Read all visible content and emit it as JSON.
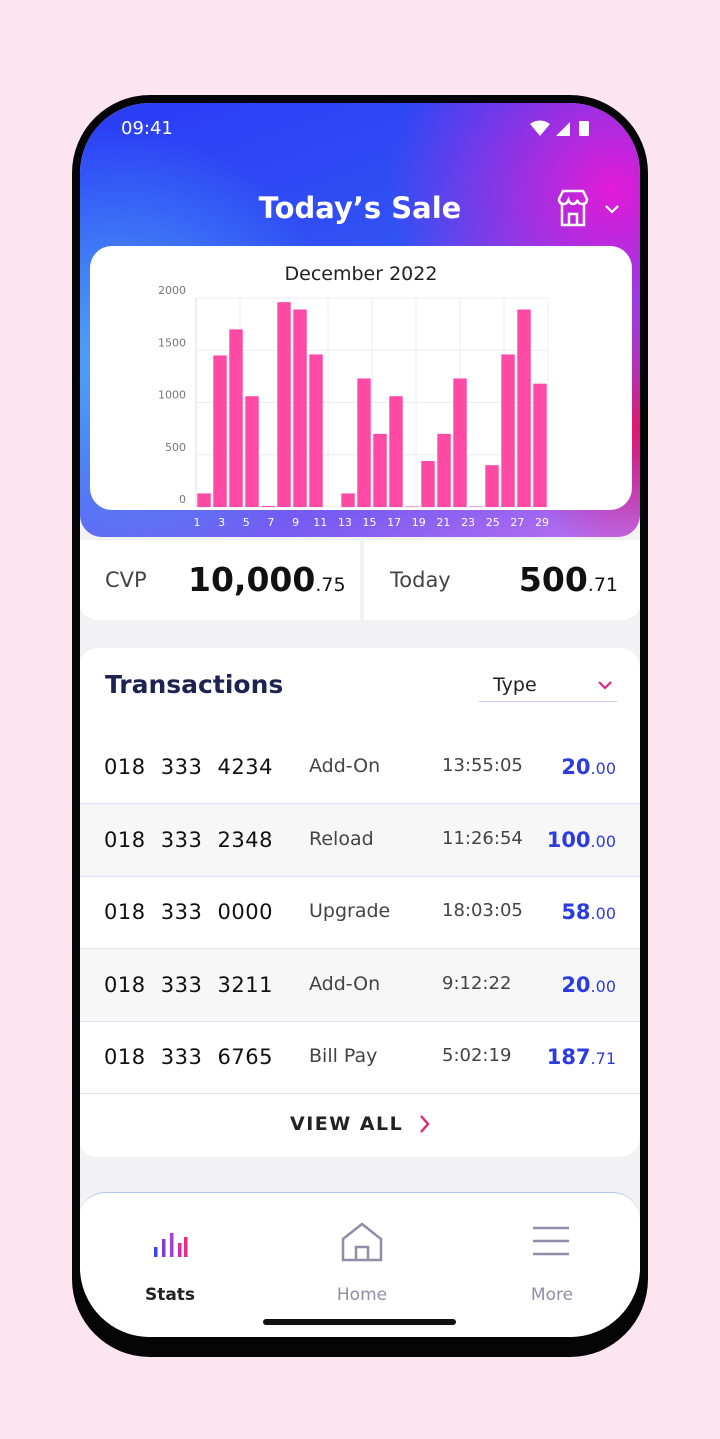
{
  "status_bar": {
    "time": "09:41"
  },
  "header": {
    "title": "Today’s Sale"
  },
  "chart": {
    "type": "bar",
    "title": "December 2022",
    "values": [
      130,
      1450,
      1700,
      1060,
      10,
      1960,
      1890,
      1460,
      0,
      130,
      1230,
      700,
      1060,
      5,
      440,
      700,
      1230,
      5,
      400,
      1460,
      1890,
      1180
    ],
    "x_labels": [
      "1",
      "3",
      "5",
      "7",
      "9",
      "11",
      "13",
      "15",
      "17",
      "19",
      "21",
      "23",
      "25",
      "27",
      "29"
    ],
    "color": "#ff4aa5",
    "ylim": [
      0,
      2000
    ],
    "yticks": [
      0,
      500,
      1000,
      1500,
      2000
    ],
    "grid": true
  },
  "stats": [
    {
      "label": "CVP",
      "amount": "10,000",
      "cents": ".75"
    },
    {
      "label": "Today",
      "amount": "500",
      "cents": ".71"
    }
  ],
  "transactions": {
    "title": "Transactions",
    "filter": "Type",
    "rows": [
      {
        "number": "018 333 4234",
        "type": "Add-On",
        "time": "13:55:05",
        "amount": "20",
        "cents": ".00"
      },
      {
        "number": "018 333 2348",
        "type": "Reload",
        "time": "11:26:54",
        "amount": "100",
        "cents": ".00"
      },
      {
        "number": "018 333 0000",
        "type": "Upgrade",
        "time": "18:03:05",
        "amount": "58",
        "cents": ".00"
      },
      {
        "number": "018 333 3211",
        "type": "Add-On",
        "time": "9:12:22",
        "amount": "20",
        "cents": ".00"
      },
      {
        "number": "018 333 6765",
        "type": "Bill Pay",
        "time": "5:02:19",
        "amount": "187",
        "cents": ".71"
      }
    ],
    "view_all": "VIEW ALL"
  },
  "nav": [
    "Stats",
    "Home",
    "More"
  ]
}
